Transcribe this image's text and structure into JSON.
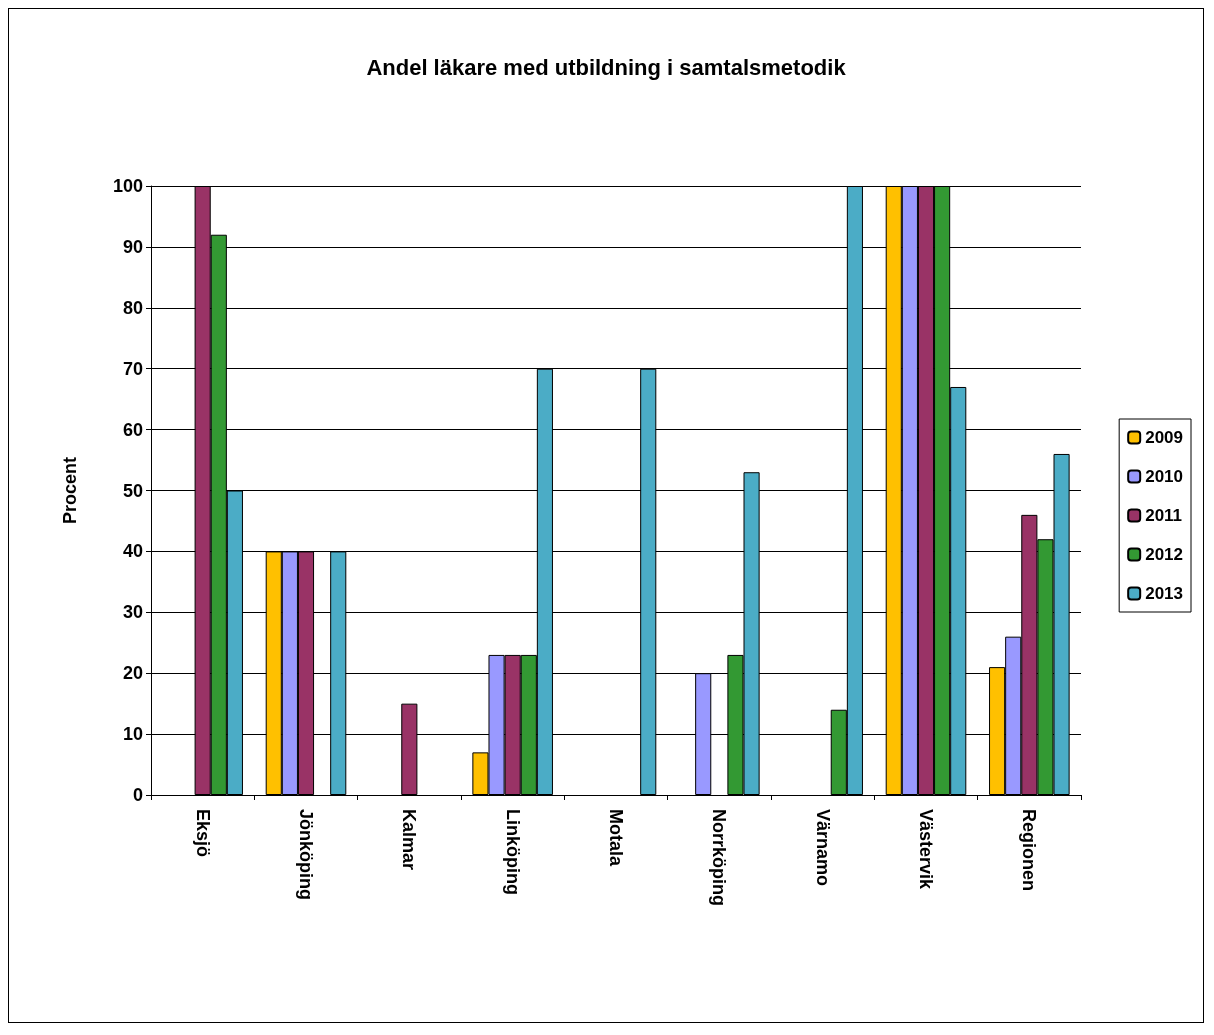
{
  "chart_data": {
    "type": "bar",
    "title": "Andel läkare med utbildning i samtalsmetodik",
    "ylabel": "Procent",
    "categories": [
      "Eksjö",
      "Jönköping",
      "Kalmar",
      "Linköping",
      "Motala",
      "Norrköping",
      "Värnamo",
      "Västervik",
      "Regionen"
    ],
    "series": [
      {
        "name": "2009",
        "color": "#ffc000",
        "values": [
          null,
          40,
          null,
          7,
          null,
          null,
          null,
          100,
          21
        ]
      },
      {
        "name": "2010",
        "color": "#9999ff",
        "values": [
          null,
          40,
          null,
          23,
          null,
          20,
          null,
          100,
          26
        ]
      },
      {
        "name": "2011",
        "color": "#993366",
        "values": [
          100,
          40,
          15,
          23,
          null,
          null,
          null,
          100,
          46
        ]
      },
      {
        "name": "2012",
        "color": "#339933",
        "values": [
          92,
          null,
          null,
          23,
          null,
          23,
          14,
          100,
          42
        ]
      },
      {
        "name": "2013",
        "color": "#4bacc6",
        "values": [
          50,
          40,
          null,
          70,
          70,
          53,
          100,
          67,
          56
        ]
      }
    ],
    "ylim": [
      0,
      100
    ],
    "yticks": [
      0,
      10,
      20,
      30,
      40,
      50,
      60,
      70,
      80,
      90,
      100
    ],
    "grid": "y",
    "legend": "right"
  }
}
